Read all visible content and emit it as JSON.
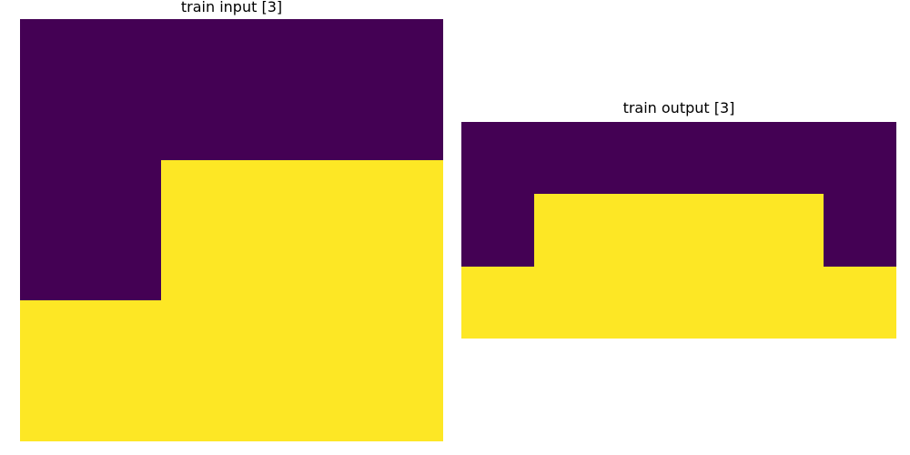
{
  "panels": [
    {
      "title": "train input [3]",
      "rows": 3,
      "cols": 3,
      "cells": [
        [
          0,
          0,
          0
        ],
        [
          0,
          1,
          1
        ],
        [
          1,
          1,
          1
        ]
      ]
    },
    {
      "title": "train output [3]",
      "rows": 3,
      "cols": 6,
      "cells": [
        [
          0,
          0,
          0,
          0,
          0,
          0
        ],
        [
          0,
          1,
          1,
          1,
          1,
          0
        ],
        [
          1,
          1,
          1,
          1,
          1,
          1
        ]
      ]
    }
  ],
  "palette": {
    "0": "#440154",
    "1": "#fde725"
  }
}
